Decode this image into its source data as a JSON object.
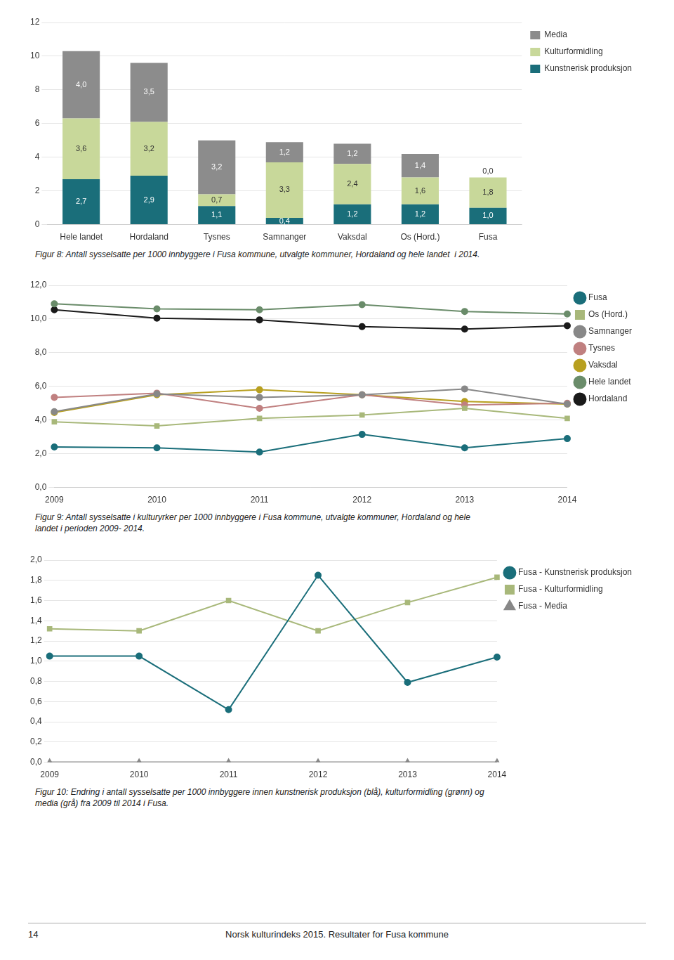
{
  "chart_data": [
    {
      "type": "bar",
      "stacked": true,
      "data_labels": true,
      "grid": "y",
      "legend": "right",
      "caption": "Figur 8: Antall sysselsatte per 1000 innbyggere i Fusa kommune, utvalgte kommuner, Hordaland og hele landet  i 2014.",
      "categories": [
        "Hele landet",
        "Hordaland",
        "Tysnes",
        "Samnanger",
        "Vaksdal",
        "Os (Hord.)",
        "Fusa"
      ],
      "series": [
        {
          "name": "Kunstnerisk produksjon",
          "color": "#1a6e7a",
          "values": [
            2.7,
            2.9,
            1.1,
            0.4,
            1.2,
            1.2,
            1.0
          ],
          "value_labels": [
            "2,7",
            "2,9",
            "1,1",
            "0,4",
            "1,2",
            "1,2",
            "1,0"
          ]
        },
        {
          "name": "Kulturformidling",
          "color": "#c8d89a",
          "values": [
            3.6,
            3.2,
            0.7,
            3.3,
            2.4,
            1.6,
            1.8
          ],
          "value_labels": [
            "3,6",
            "3,2",
            "0,7",
            "3,3",
            "2,4",
            "1,6",
            "1,8"
          ]
        },
        {
          "name": "Media",
          "color": "#8c8c8c",
          "values": [
            4.0,
            3.5,
            3.2,
            1.2,
            1.2,
            1.4,
            0.0
          ],
          "value_labels": [
            "4,0",
            "3,5",
            "3,2",
            "1,2",
            "1,2",
            "1,4",
            "0,0"
          ]
        }
      ],
      "ylim": [
        0,
        12
      ],
      "yticks": [
        0,
        2,
        4,
        6,
        8,
        10,
        12
      ]
    },
    {
      "type": "line",
      "grid": "y",
      "legend": "right",
      "caption": "Figur 9: Antall sysselsatte i kulturyrker per 1000 innbyggere i Fusa kommune, utvalgte kommuner, Hordaland og hele\nlandet i perioden 2009- 2014.",
      "categories": [
        "2009",
        "2010",
        "2011",
        "2012",
        "2013",
        "2014"
      ],
      "series": [
        {
          "name": "Fusa",
          "color": "#1a6e7a",
          "marker": "circle",
          "values": [
            2.4,
            2.35,
            2.1,
            3.15,
            2.35,
            2.9
          ]
        },
        {
          "name": "Os (Hord.)",
          "color": "#a8b87a",
          "marker": "square",
          "values": [
            3.9,
            3.65,
            4.1,
            4.3,
            4.7,
            4.1
          ]
        },
        {
          "name": "Samnanger",
          "color": "#888888",
          "marker": "circle",
          "values": [
            4.5,
            5.55,
            5.35,
            5.5,
            5.85,
            4.95
          ]
        },
        {
          "name": "Tysnes",
          "color": "#c08080",
          "marker": "circle",
          "values": [
            5.35,
            5.6,
            4.7,
            5.5,
            4.9,
            5.0
          ]
        },
        {
          "name": "Vaksdal",
          "color": "#b8a020",
          "marker": "circle",
          "values": [
            4.45,
            5.5,
            5.8,
            5.5,
            5.1,
            4.95
          ]
        },
        {
          "name": "Hele landet",
          "color": "#6a8c6a",
          "marker": "circle",
          "values": [
            10.9,
            10.6,
            10.55,
            10.85,
            10.45,
            10.3
          ]
        },
        {
          "name": "Hordaland",
          "color": "#1a1a1a",
          "marker": "circle",
          "values": [
            10.55,
            10.05,
            9.95,
            9.55,
            9.4,
            9.6
          ]
        }
      ],
      "ylim": [
        0.0,
        12.0
      ],
      "yticks": [
        {
          "value": 0.0,
          "label": "0,0"
        },
        {
          "value": 2.0,
          "label": "2,0"
        },
        {
          "value": 4.0,
          "label": "4,0"
        },
        {
          "value": 6.0,
          "label": "6,0"
        },
        {
          "value": 8.0,
          "label": "8,0"
        },
        {
          "value": 10.0,
          "label": "10,0"
        },
        {
          "value": 12.0,
          "label": "12,0"
        }
      ]
    },
    {
      "type": "line",
      "grid": "y",
      "legend": "right",
      "caption": "Figur 10: Endring i antall sysselsatte per 1000 innbyggere innen kunstnerisk produksjon (blå), kulturformidling (grønn) og\nmedia (grå) fra 2009 til 2014 i Fusa.",
      "categories": [
        "2009",
        "2010",
        "2011",
        "2012",
        "2013",
        "2014"
      ],
      "series": [
        {
          "name": "Fusa - Kunstnerisk produksjon",
          "color": "#1a6e7a",
          "marker": "circle",
          "values": [
            1.05,
            1.05,
            0.52,
            1.85,
            0.79,
            1.04
          ]
        },
        {
          "name": "Fusa - Kulturformidling",
          "color": "#a8b87a",
          "marker": "square",
          "values": [
            1.32,
            1.3,
            1.6,
            1.3,
            1.58,
            1.83
          ]
        },
        {
          "name": "Fusa - Media",
          "color": "#888888",
          "marker": "triangle",
          "values": [
            0.0,
            0.0,
            0.0,
            0.0,
            0.0,
            0.0
          ]
        }
      ],
      "ylim": [
        0.0,
        2.0
      ],
      "yticks": [
        {
          "value": 0.0,
          "label": "0,0"
        },
        {
          "value": 0.2,
          "label": "0,2"
        },
        {
          "value": 0.4,
          "label": "0,4"
        },
        {
          "value": 0.6,
          "label": "0,6"
        },
        {
          "value": 0.8,
          "label": "0,8"
        },
        {
          "value": 1.0,
          "label": "1,0"
        },
        {
          "value": 1.2,
          "label": "1,2"
        },
        {
          "value": 1.4,
          "label": "1,4"
        },
        {
          "value": 1.6,
          "label": "1,6"
        },
        {
          "value": 1.8,
          "label": "1,8"
        },
        {
          "value": 2.0,
          "label": "2,0"
        }
      ]
    }
  ],
  "page_number": "14",
  "footer_text": "Norsk kulturindeks 2015. Resultater for Fusa kommune"
}
